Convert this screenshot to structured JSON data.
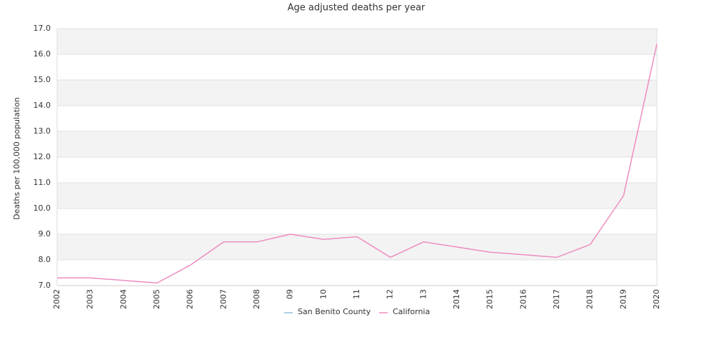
{
  "chart_data": {
    "type": "line",
    "title": "Age adjusted deaths per year",
    "y_label": "Deaths per 100,000 population",
    "categories": [
      "2002",
      "2003",
      "2004",
      "2005",
      "2006",
      "2007",
      "2008",
      "09",
      "10",
      "11",
      "12",
      "13",
      "2014",
      "2015",
      "2016",
      "2017",
      "2018",
      "2019",
      "2020"
    ],
    "series": [
      {
        "name": "San Benito County",
        "color": "#8ec3de",
        "values": [
          null,
          null,
          null,
          null,
          null,
          null,
          null,
          null,
          null,
          null,
          null,
          null,
          null,
          null,
          null,
          null,
          null,
          null,
          null
        ]
      },
      {
        "name": "California",
        "color": "#ee8cc0",
        "values": [
          7.3,
          7.3,
          7.2,
          7.1,
          7.8,
          8.7,
          8.7,
          9.0,
          8.8,
          8.9,
          8.1,
          8.7,
          8.5,
          8.3,
          8.2,
          8.1,
          8.6,
          10.5,
          16.4
        ]
      }
    ],
    "ylim": [
      7,
      17
    ],
    "yticks": [
      {
        "value": 7,
        "label": "7.0"
      },
      {
        "value": 8,
        "label": "8.0"
      },
      {
        "value": 9,
        "label": "9.0"
      },
      {
        "value": 10,
        "label": "10.0"
      },
      {
        "value": 11,
        "label": "11.0"
      },
      {
        "value": 12,
        "label": "12.0"
      },
      {
        "value": 13,
        "label": "13.0"
      },
      {
        "value": 14,
        "label": "14.0"
      },
      {
        "value": 15,
        "label": "15.0"
      },
      {
        "value": 16,
        "label": "16.0"
      },
      {
        "value": 17,
        "label": "17.0"
      }
    ],
    "grid": true,
    "legend": "bottom"
  }
}
